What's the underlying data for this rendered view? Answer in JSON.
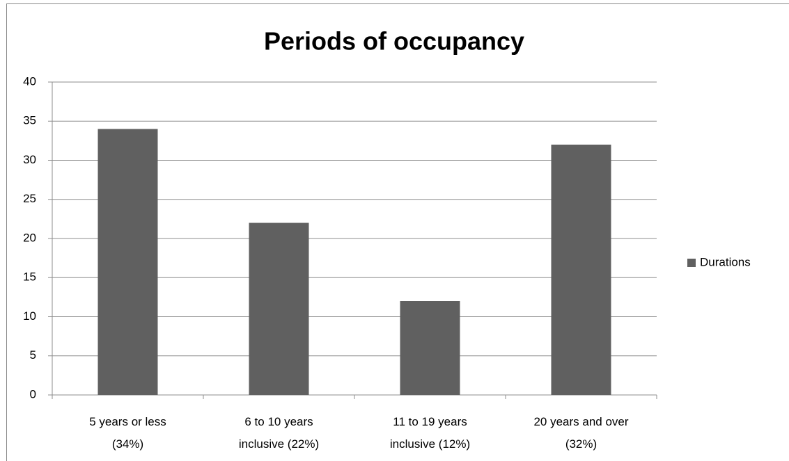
{
  "chart_data": {
    "type": "bar",
    "title": "Periods of occupancy",
    "categories": [
      "5 years or less\n(34%)",
      "6 to 10 years\ninclusive (22%)",
      "11 to 19 years\ninclusive (12%)",
      "20 years and over\n(32%)"
    ],
    "series": [
      {
        "name": "Durations",
        "color": "#606060",
        "values": [
          34,
          22,
          12,
          32
        ]
      }
    ],
    "ylim": [
      0,
      40
    ],
    "yticks": [
      0,
      5,
      10,
      15,
      20,
      25,
      30,
      35,
      40
    ],
    "grid": true,
    "legend": "right"
  }
}
